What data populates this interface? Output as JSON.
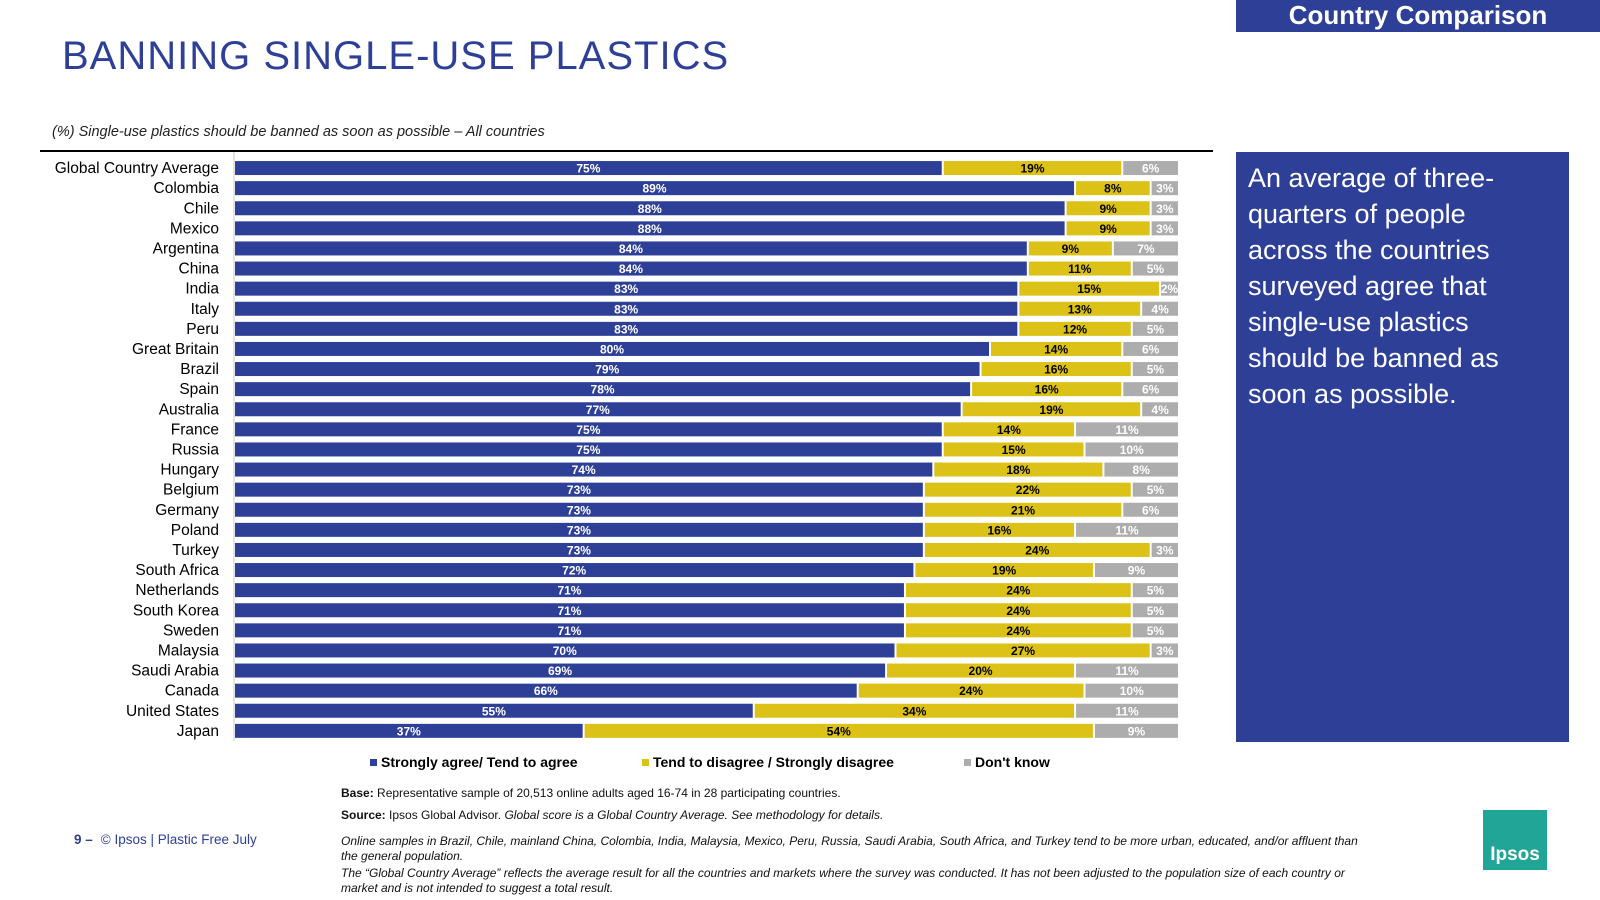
{
  "header": {
    "tag": "Country Comparison",
    "title": "BANNING SINGLE-USE PLASTICS",
    "subtitle": "(%) Single-use plastics should be banned as soon as possible – All countries"
  },
  "callout": {
    "text": "An average of three-quarters of people across the countries surveyed agree that single-use plastics should be banned as soon as possible."
  },
  "colors": {
    "agree": "#2e3f97",
    "disagree": "#dcc116",
    "dontknow": "#adadad",
    "accent": "#2e3f97"
  },
  "chart_data": {
    "type": "bar",
    "orientation": "horizontal",
    "stacked": true,
    "categories": [
      "Global Country Average",
      "Colombia",
      "Chile",
      "Mexico",
      "Argentina",
      "China",
      "India",
      "Italy",
      "Peru",
      "Great Britain",
      "Brazil",
      "Spain",
      "Australia",
      "France",
      "Russia",
      "Hungary",
      "Belgium",
      "Germany",
      "Poland",
      "Turkey",
      "South Africa",
      "Netherlands",
      "South Korea",
      "Sweden",
      "Malaysia",
      "Saudi Arabia",
      "Canada",
      "United States",
      "Japan"
    ],
    "series": [
      {
        "name": "Strongly agree/ Tend to agree",
        "values": [
          75,
          89,
          88,
          88,
          84,
          84,
          83,
          83,
          83,
          80,
          79,
          78,
          77,
          75,
          75,
          74,
          73,
          73,
          73,
          73,
          72,
          71,
          71,
          71,
          70,
          69,
          66,
          55,
          37
        ]
      },
      {
        "name": "Tend to disagree / Strongly disagree",
        "values": [
          19,
          8,
          9,
          9,
          9,
          11,
          15,
          13,
          12,
          14,
          16,
          16,
          19,
          14,
          15,
          18,
          22,
          21,
          16,
          24,
          19,
          24,
          24,
          24,
          27,
          20,
          24,
          34,
          54
        ]
      },
      {
        "name": "Don't know",
        "values": [
          6,
          3,
          3,
          3,
          7,
          5,
          2,
          4,
          5,
          6,
          5,
          6,
          4,
          11,
          10,
          8,
          5,
          6,
          11,
          3,
          9,
          5,
          5,
          5,
          3,
          11,
          10,
          11,
          9
        ]
      }
    ],
    "value_suffix": "%",
    "legend_position": "bottom",
    "grid": false
  },
  "legend": {
    "agree": "Strongly agree/ Tend to agree",
    "disagree": "Tend to disagree / Strongly disagree",
    "dontknow": "Don't know"
  },
  "notes": {
    "base_label": "Base:",
    "base_text": "Representative sample of 20,513 online adults aged 16-74 in 28 participating countries.",
    "source_label": "Source:",
    "source_text": "Ipsos Global Advisor.",
    "source_italic": "Global score is a Global Country Average. See methodology for details.",
    "online_line1": "Online samples in Brazil, Chile, mainland China, Colombia, India, Malaysia, Mexico, Peru, Russia, Saudi Arabia, South Africa, and Turkey tend to be more urban, educated, and/or affluent than",
    "online_line2": "the general population.",
    "gca_line1": "The “Global Country Average” reflects the average result for all the countries and markets where the survey was conducted. It has not been adjusted to the population size of each country or",
    "gca_line2": "market and is not intended to suggest a total result."
  },
  "footer": {
    "page_number": "9 –",
    "text": "© Ipsos | Plastic Free July",
    "logo_text": "Ipsos"
  }
}
